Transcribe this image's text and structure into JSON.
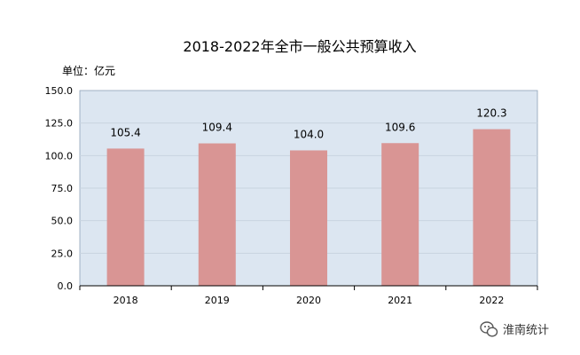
{
  "chart_data": {
    "type": "bar",
    "title": "2018-2022年全市一般公共预算收入",
    "unit_label": "单位：亿元",
    "categories": [
      "2018",
      "2019",
      "2020",
      "2021",
      "2022"
    ],
    "values": [
      105.4,
      109.4,
      104.0,
      109.6,
      120.3
    ],
    "value_labels": [
      "105.4",
      "109.4",
      "104.0",
      "109.6",
      "120.3"
    ],
    "ylim": [
      0,
      150
    ],
    "yticks": [
      "0.0",
      "25.0",
      "50.0",
      "75.0",
      "100.0",
      "125.0",
      "150.0"
    ],
    "grid": true,
    "bar_color": "#D99594",
    "plot_bg": "#DCE6F1",
    "grid_color": "#C9D4E0"
  },
  "watermark": {
    "text": "淮南统计",
    "icon": "wechat-icon"
  }
}
